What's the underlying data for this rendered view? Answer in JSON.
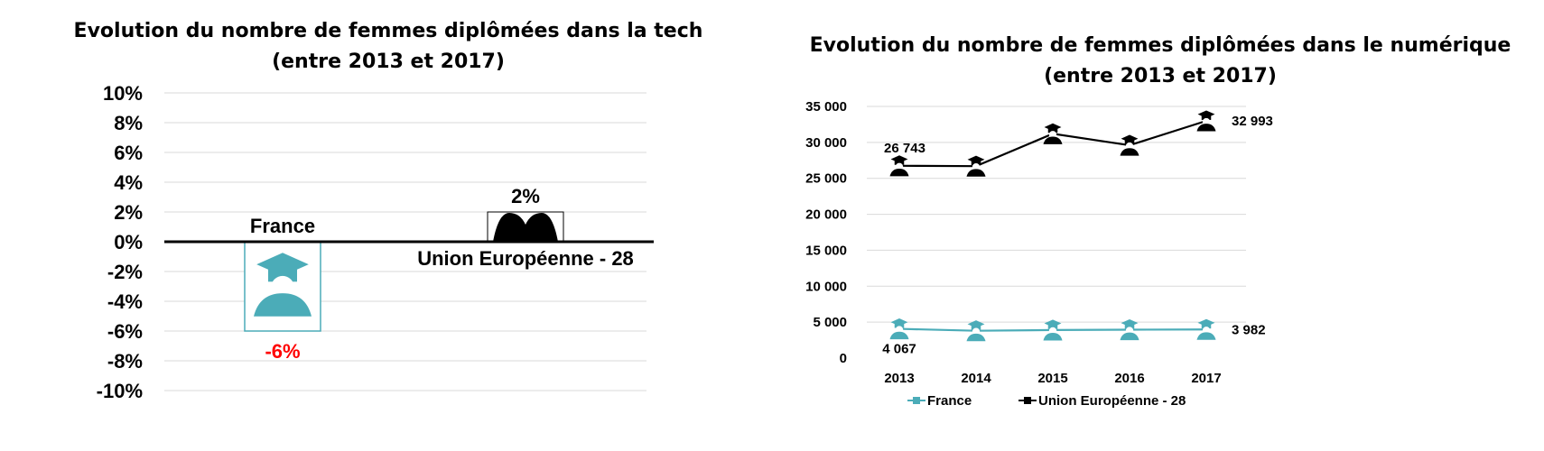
{
  "colors": {
    "france": "#4BACB8",
    "eu": "#000000",
    "negative_label": "#FF0000",
    "grid": "#D9D9D9"
  },
  "icons": {
    "point_marker": "graduate-icon"
  },
  "chart_data": [
    {
      "type": "bar",
      "title": "Evolution du nombre de femmes diplômées dans la tech (entre 2013 et 2017)",
      "xlabel": "",
      "ylabel": "",
      "ylim": [
        -10,
        10
      ],
      "y_ticks": [
        "10%",
        "8%",
        "6%",
        "4%",
        "2%",
        "0%",
        "-2%",
        "-4%",
        "-6%",
        "-8%",
        "-10%"
      ],
      "categories": [
        "France",
        "Union Européenne - 28"
      ],
      "values": [
        -6,
        2
      ],
      "value_labels": [
        "-6%",
        "2%"
      ],
      "grid": true,
      "legend": "none"
    },
    {
      "type": "line",
      "title": "Evolution du nombre de femmes diplômées dans le numérique (entre 2013 et 2017)",
      "xlabel": "",
      "ylabel": "",
      "x": [
        "2013",
        "2014",
        "2015",
        "2016",
        "2017"
      ],
      "ylim": [
        0,
        35000
      ],
      "y_ticks": [
        "35 000",
        "30 000",
        "25 000",
        "20 000",
        "15 000",
        "10 000",
        "5 000",
        "0"
      ],
      "series": [
        {
          "name": "France",
          "values": [
            4067,
            3800,
            3900,
            3950,
            3982
          ],
          "labels": [
            "4 067",
            "",
            "",
            "",
            "3 982"
          ]
        },
        {
          "name": "Union Européenne - 28",
          "values": [
            26743,
            26700,
            31200,
            29600,
            32993
          ],
          "labels": [
            "26 743",
            "",
            "",
            "",
            "32 993"
          ]
        }
      ],
      "grid": true,
      "legend": "bottom"
    }
  ]
}
